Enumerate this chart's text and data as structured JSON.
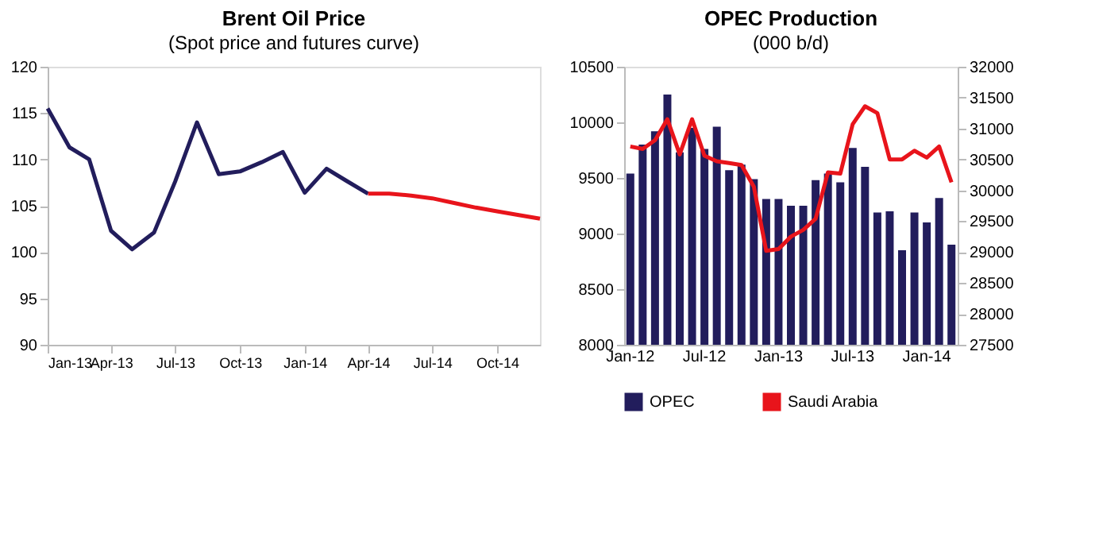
{
  "chart_data": [
    {
      "type": "line",
      "title": "Brent Oil Price",
      "subtitle": "(Spot price and futures curve)",
      "xlim": [
        "2013-01",
        "2014-12"
      ],
      "xticks": [
        {
          "value": "2013-01",
          "label": "Jan-13"
        },
        {
          "value": "2013-04",
          "label": "Apr-13"
        },
        {
          "value": "2013-07",
          "label": "Jul-13"
        },
        {
          "value": "2013-10",
          "label": "Oct-13"
        },
        {
          "value": "2014-01",
          "label": "Jan-14"
        },
        {
          "value": "2014-04",
          "label": "Apr-14"
        },
        {
          "value": "2014-07",
          "label": "Jul-14"
        },
        {
          "value": "2014-10",
          "label": "Oct-14"
        }
      ],
      "ylim": [
        90,
        120
      ],
      "yticks": [
        90,
        95,
        100,
        105,
        110,
        115,
        120
      ],
      "grid": false,
      "legend": false,
      "marker": "none",
      "line_style": "solid",
      "series": [
        {
          "color": "#221d5c",
          "x": [
            "2013-01",
            "2013-02",
            "2013-03",
            "2013-04",
            "2013-05",
            "2013-06",
            "2013-07",
            "2013-08",
            "2013-09",
            "2013-10",
            "2013-11",
            "2013-12",
            "2014-01",
            "2014-02",
            "2014-03",
            "2014-04"
          ],
          "values": [
            115.5,
            111.3,
            110.0,
            102.3,
            100.3,
            102.1,
            107.6,
            114.0,
            108.4,
            108.7,
            109.7,
            110.8,
            106.4,
            109.0,
            107.7,
            106.3
          ]
        },
        {
          "color": "#e8141b",
          "x": [
            "2014-04",
            "2014-05",
            "2014-06",
            "2014-07",
            "2014-08",
            "2014-09",
            "2014-10",
            "2014-11",
            "2014-12"
          ],
          "values": [
            106.3,
            106.3,
            106.1,
            105.8,
            105.3,
            104.8,
            104.4,
            104.0,
            103.6
          ]
        }
      ]
    },
    {
      "type": "bar",
      "title": "OPEC Production",
      "subtitle": "(000 b/d)",
      "categories": [
        "Jan-12",
        null,
        null,
        null,
        null,
        null,
        "Jul-12",
        null,
        null,
        null,
        null,
        null,
        "Jan-13",
        null,
        null,
        null,
        null,
        null,
        "Jul-13",
        null,
        null,
        null,
        null,
        null,
        "Jan-14",
        null,
        null
      ],
      "ylim": [
        8000,
        10500
      ],
      "yticks": [
        8000,
        8500,
        9000,
        9500,
        10000,
        10500
      ],
      "y2lim": [
        27500,
        32000
      ],
      "y2ticks": [
        27500,
        28000,
        28500,
        29000,
        29500,
        30000,
        30500,
        31000,
        31500,
        32000
      ],
      "grid": false,
      "legend": "bottom",
      "series": [
        {
          "name": "OPEC",
          "color": "#221d5c",
          "values": [
            9540,
            9800,
            9920,
            10250,
            9730,
            9950,
            9760,
            9960,
            9570,
            9620,
            9490,
            9310,
            9310,
            9250,
            9250,
            9480,
            9540,
            9460,
            9770,
            9600,
            9190,
            9200,
            8850,
            9190,
            9100,
            9320,
            8900
          ]
        },
        {
          "name": "Saudi Arabia",
          "type": "line",
          "axis": "y2",
          "color": "#e8141b",
          "values": [
            30710,
            30670,
            30810,
            31150,
            30580,
            31150,
            30560,
            30470,
            30440,
            30410,
            30060,
            29020,
            29050,
            29250,
            29360,
            29540,
            30290,
            30270,
            31070,
            31360,
            31250,
            30500,
            30500,
            30640,
            30530,
            30710,
            30130
          ]
        }
      ]
    }
  ]
}
